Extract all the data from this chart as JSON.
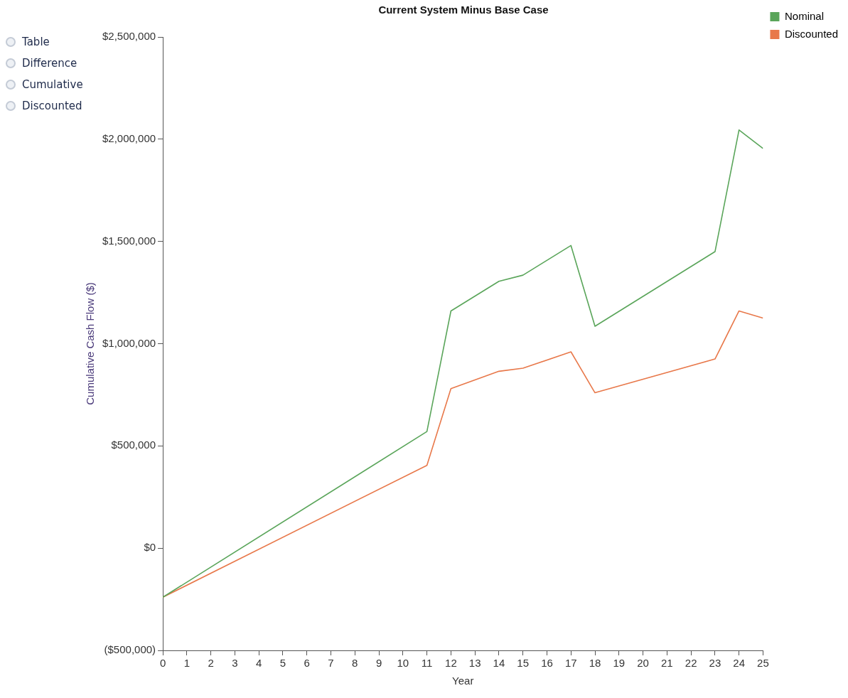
{
  "chart_data": {
    "type": "line",
    "title": "Current System Minus Base Case",
    "xlabel": "Year",
    "ylabel": "Cumulative Cash Flow ($)",
    "annotations": [
      "Table",
      "Difference",
      "Cumulative",
      "Discounted"
    ],
    "series": [
      {
        "name": "Nominal",
        "color": "#5aa55a",
        "x": [
          0,
          11,
          12,
          14,
          15,
          17,
          18,
          23,
          24,
          25
        ],
        "values": [
          -240000,
          570000,
          1160000,
          1305000,
          1335000,
          1480000,
          1085000,
          1450000,
          2045000,
          1955000
        ]
      },
      {
        "name": "Discounted",
        "color": "#e8784a",
        "x": [
          0,
          11,
          12,
          14,
          15,
          17,
          18,
          23,
          24,
          25
        ],
        "values": [
          -240000,
          405000,
          780000,
          865000,
          880000,
          960000,
          760000,
          925000,
          1160000,
          1125000
        ]
      }
    ],
    "xlim": [
      0,
      25
    ],
    "xticks": [
      0,
      1,
      2,
      3,
      4,
      5,
      6,
      7,
      8,
      9,
      10,
      11,
      12,
      13,
      14,
      15,
      16,
      17,
      18,
      19,
      20,
      21,
      22,
      23,
      24,
      25
    ],
    "ylim": [
      -500000,
      2500000
    ],
    "yticks": [
      {
        "value": -500000,
        "label": "($500,000)"
      },
      {
        "value": 0,
        "label": "$0"
      },
      {
        "value": 500000,
        "label": "$500,000"
      },
      {
        "value": 1000000,
        "label": "$1,000,000"
      },
      {
        "value": 1500000,
        "label": "$1,500,000"
      },
      {
        "value": 2000000,
        "label": "$2,000,000"
      },
      {
        "value": 2500000,
        "label": "$2,500,000"
      }
    ],
    "grid": false,
    "legend": "top right",
    "marker": "none",
    "line_style": "solid"
  }
}
